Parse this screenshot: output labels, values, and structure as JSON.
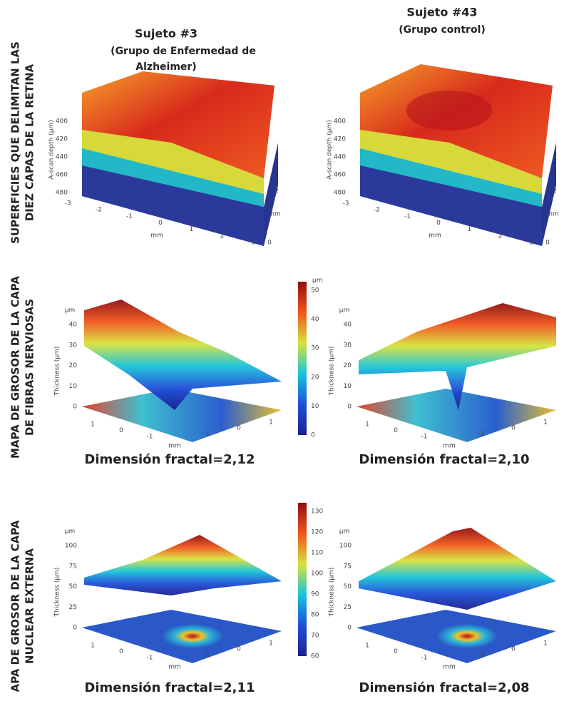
{
  "row_labels": [
    [
      "SUPERFICIES QUE DELIMITAN LAS",
      "DIEZ CAPAS DE LA RETINA"
    ],
    [
      "MAPA DE GROSOR DE LA CAPA",
      "DE FIBRAS NERVIOSAS"
    ],
    [
      "APA DE GROSOR DE LA CAPA",
      "NUCLEAR EXTERNA"
    ]
  ],
  "columns": [
    {
      "title": "Sujeto #3",
      "subtitle": [
        "(Grupo de Enfermedad de",
        "Alzheimer)"
      ]
    },
    {
      "title": "Sujeto #43",
      "subtitle": [
        "(Grupo control)"
      ]
    }
  ],
  "surfaces": {
    "z_label": "A-scan depth (µm)",
    "z_ticks": [
      "400",
      "420",
      "440",
      "460",
      "480"
    ],
    "x_ticks": [
      "-3",
      "-2",
      "-1",
      "0",
      "1",
      "2",
      "3"
    ],
    "x_unit": "mm",
    "y_ticks": [
      "0",
      "2"
    ],
    "y_unit": "mm"
  },
  "rnfl": {
    "z_unit": "µm",
    "z_label": "Thickness (µm)",
    "z_ticks": [
      "0",
      "10",
      "20",
      "30",
      "40"
    ],
    "x_ticks": [
      "1",
      "0",
      "-1"
    ],
    "y_ticks": [
      "-1",
      "0",
      "1"
    ],
    "floor_unit": "mm",
    "colorbar_unit": "µm",
    "colorbar_ticks": [
      "0",
      "10",
      "20",
      "30",
      "40",
      "50"
    ],
    "captions": [
      "Dimensión fractal=2,12",
      "Dimensión fractal=2,10"
    ]
  },
  "onl": {
    "z_unit": "µm",
    "z_label": "Thickness (µm)",
    "z_ticks": [
      "0",
      "25",
      "50",
      "75",
      "100"
    ],
    "x_ticks": [
      "1",
      "0",
      "-1"
    ],
    "y_ticks": [
      "-1",
      "0",
      "1"
    ],
    "floor_unit": "mm",
    "colorbar_ticks": [
      "60",
      "70",
      "80",
      "90",
      "100",
      "110",
      "120",
      "130"
    ],
    "captions": [
      "Dimensión fractal=2,11",
      "Dimensión fractal=2,08"
    ]
  }
}
